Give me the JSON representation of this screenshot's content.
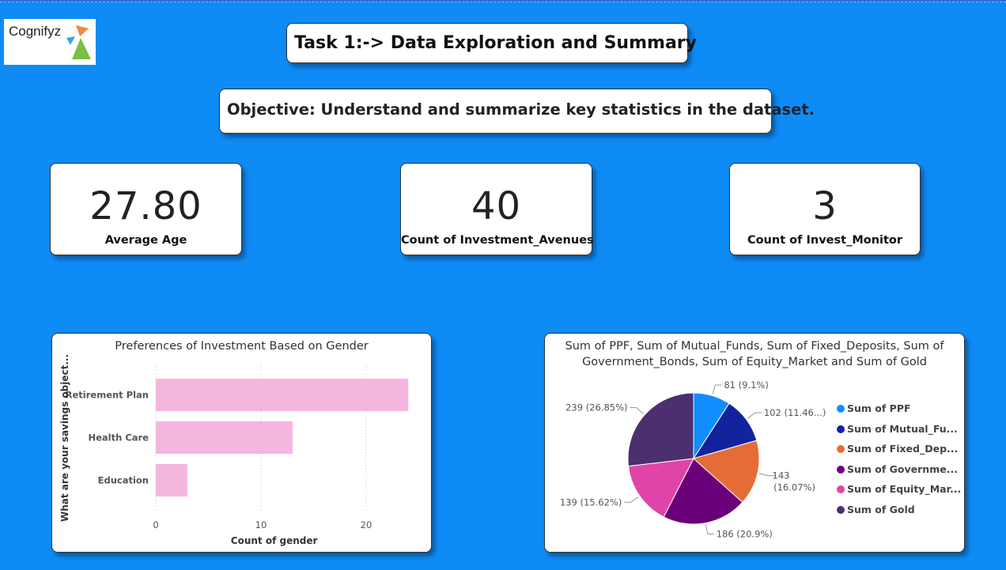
{
  "logo": {
    "text": "Cognifyz"
  },
  "header": {
    "title": "Task 1:-> Data Exploration and Summary",
    "objective": "Objective: Understand and summarize key statistics in the dataset."
  },
  "kpis": [
    {
      "value": "27.80",
      "label": "Average Age"
    },
    {
      "value": "40",
      "label": "Count of Investment_Avenues"
    },
    {
      "value": "3",
      "label": "Count of Invest_Monitor"
    }
  ],
  "colors": {
    "background": "#0f8bf6",
    "bar": "#f4b6de",
    "pie": [
      "#118dff",
      "#12239e",
      "#e66c37",
      "#6b007b",
      "#e044a7",
      "#4b2f6e"
    ]
  },
  "chart_data": [
    {
      "type": "bar",
      "orientation": "horizontal",
      "title": "Preferences of Investment Based on Gender",
      "xlabel": "Count of gender",
      "ylabel": "What are your savings object...",
      "categories": [
        "Retirement Plan",
        "Health Care",
        "Education"
      ],
      "values": [
        24,
        13,
        3
      ],
      "xlim": [
        0,
        25
      ],
      "xticks": [
        "0",
        "10",
        "20"
      ],
      "grid": true
    },
    {
      "type": "pie",
      "title": "Sum of PPF, Sum of Mutual_Funds, Sum of Fixed_Deposits, Sum of Government_Bonds, Sum of Equity_Market and Sum of Gold",
      "legend_position": "right",
      "labels": [
        "Sum of PPF",
        "Sum of Mutual_Fu...",
        "Sum of Fixed_Dep...",
        "Sum of Governme...",
        "Sum of Equity_Mar...",
        "Sum of Gold"
      ],
      "values": [
        81,
        102,
        143,
        186,
        139,
        239
      ],
      "data_labels": [
        "81 (9.1%)",
        "102 (11.46...)",
        "143 (16.07%)",
        "186 (20.9%)",
        "139 (15.62%)",
        "239 (26.85%)"
      ]
    }
  ]
}
